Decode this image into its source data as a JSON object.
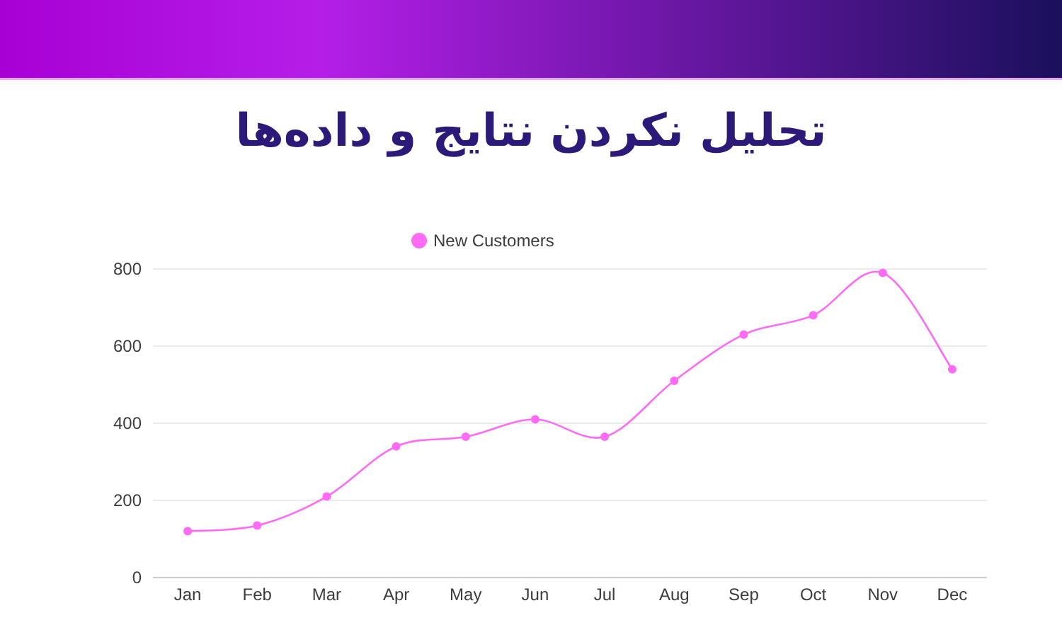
{
  "chart_data": {
    "type": "line",
    "title": "تحلیل نکردن نتایج و داده‌ها",
    "categories": [
      "Jan",
      "Feb",
      "Mar",
      "Apr",
      "May",
      "Jun",
      "Jul",
      "Aug",
      "Sep",
      "Oct",
      "Nov",
      "Dec"
    ],
    "series": [
      {
        "name": "New Customers",
        "color": "#ff6bf5",
        "values": [
          120,
          135,
          210,
          340,
          365,
          410,
          365,
          510,
          630,
          680,
          790,
          540
        ]
      }
    ],
    "ylim": [
      0,
      800
    ],
    "yticks": [
      0,
      200,
      400,
      600,
      800
    ],
    "grid": "y",
    "legend": "top",
    "marker": "circle"
  }
}
